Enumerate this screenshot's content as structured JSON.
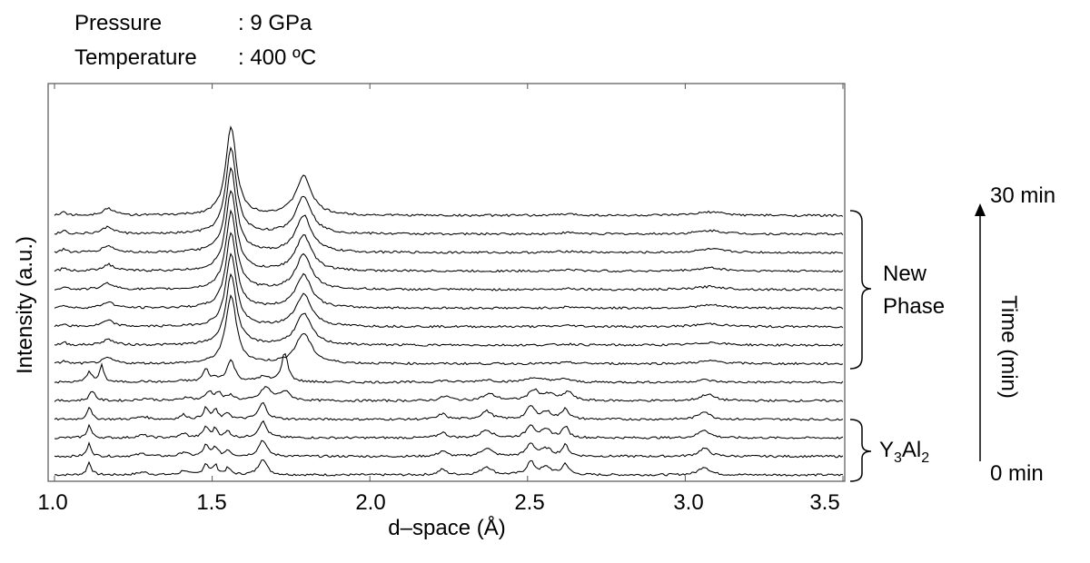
{
  "conditions": [
    {
      "key": "Pressure",
      "value": ": 9 GPa"
    },
    {
      "key": "Temperature",
      "value": ": 400 ºC"
    }
  ],
  "chart_data": {
    "type": "line",
    "xlabel": "d–space (Å)",
    "ylabel": "Intensity (a.u.)",
    "xlim": [
      1.0,
      3.5
    ],
    "xticks": [
      "1.0",
      "1.5",
      "2.0",
      "2.5",
      "3.0",
      "3.5"
    ],
    "xtick_values": [
      1.0,
      1.5,
      2.0,
      2.5,
      3.0,
      3.5
    ],
    "grid": false,
    "stacked_traces": 15,
    "trace_order": "bottom = 0 min, top = 30 min",
    "groups": [
      {
        "label_lines": [
          "New",
          "Phase"
        ],
        "traces": "upper 10"
      },
      {
        "label_prefix": "Y",
        "label_sub1": "3",
        "label_mid": "Al",
        "label_sub2": "2",
        "traces": "lower 4"
      }
    ],
    "time_axis": {
      "label": "Time (min)",
      "start": "0 min",
      "end": "30 min"
    },
    "peaks": {
      "Y3Al2": [
        1.11,
        1.28,
        1.41,
        1.48,
        1.51,
        1.55,
        1.66,
        2.23,
        2.37,
        2.51,
        2.56,
        2.62,
        3.06
      ],
      "new_phase": [
        1.03,
        1.17,
        1.56,
        1.79,
        2.63,
        3.08
      ],
      "transition": [
        1.15,
        1.55,
        1.73
      ]
    }
  }
}
